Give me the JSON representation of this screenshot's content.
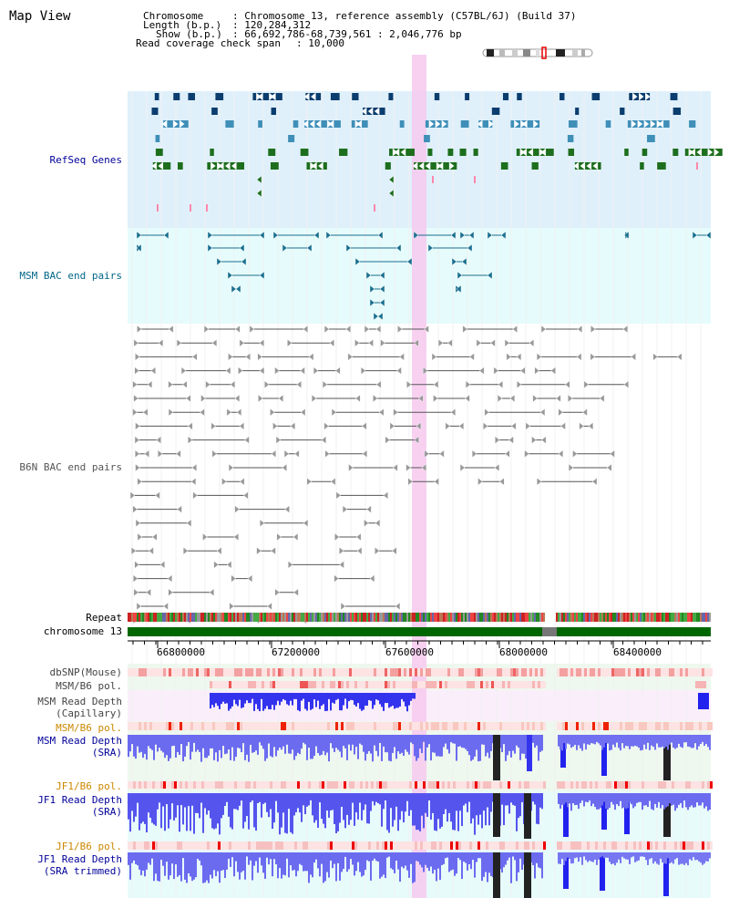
{
  "app": {
    "title": "Map View"
  },
  "info": {
    "chromosome_label": "Chromosome",
    "chromosome_value": ": Chromosome 13, reference assembly (C57BL/6J) (Build 37)",
    "length_label": "Length (b.p.)",
    "length_value": ": 120,284,312",
    "show_label": "Show (b.p.)",
    "show_value": ": 66,692,786-68,739,561 : 2,046,776 bp",
    "span_label": "Read coverage check span",
    "span_value": ": 10,000"
  },
  "tracks": {
    "refseq": "RefSeq Genes",
    "msm_bac": "MSM BAC end pairs",
    "b6n_bac": "B6N BAC end pairs",
    "repeat": "Repeat",
    "chromosome": "chromosome 13",
    "dbsnp": "dbSNP(Mouse)",
    "msm_pol1": "MSM/B6 pol.",
    "msm_depth_cap_1": "MSM Read Depth",
    "msm_depth_cap_2": "(Capillary)",
    "msm_pol2": "MSM/B6 pol.",
    "msm_depth_sra_1": "MSM Read Depth",
    "msm_depth_sra_2": "(SRA)",
    "jf1_pol1": "JF1/B6 pol.",
    "jf1_depth_sra_1": "JF1 Read Depth",
    "jf1_depth_sra_2": "(SRA)",
    "jf1_pol2": "JF1/B6 pol.",
    "jf1_depth_trim_1": "JF1 Read Depth",
    "jf1_depth_trim_2": "(SRA trimmed)"
  },
  "axis": {
    "ticks": [
      "66800000",
      "67200000",
      "67600000",
      "68000000",
      "68400000"
    ]
  },
  "colors": {
    "refseq_bg": "#dff0fb",
    "msm_bac_bg": "#e6fbfb",
    "gene_dark": "#0b3d6e",
    "gene_mid": "#3f8fb8",
    "gene_green": "#1d6e1d",
    "bac_line": "#1a6f8f",
    "b6n_line": "#555555",
    "highlight": "#f7c9ee",
    "chrom_green": "#006600",
    "depth_blue": "#2020ee",
    "track_label_blue": "#000099",
    "track_label_orange": "#cc8800",
    "track_label_teal": "#006688"
  },
  "icons": {
    "chromosome_ideogram": "chromosome-ideogram-icon"
  }
}
